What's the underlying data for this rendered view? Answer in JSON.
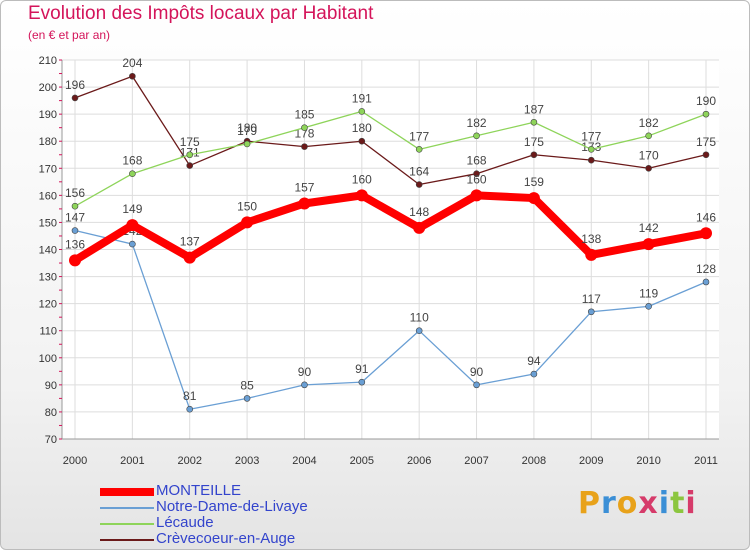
{
  "title": "Evolution des Impôts locaux par Habitant",
  "subtitle": "(en € et par an)",
  "logo": {
    "text": "Proxiti",
    "letter_colors": [
      "#e8a21a",
      "#3b8fd6",
      "#e8a21a",
      "#d63b6a",
      "#3b8fd6",
      "#8cc63f",
      "#d63b6a"
    ]
  },
  "chart_data": {
    "type": "line",
    "x": [
      "2000",
      "2001",
      "2002",
      "2003",
      "2004",
      "2005",
      "2006",
      "2007",
      "2008",
      "2009",
      "2010",
      "2011"
    ],
    "ylim": [
      70,
      210
    ],
    "yticks": [
      70,
      80,
      90,
      100,
      110,
      120,
      130,
      140,
      150,
      160,
      170,
      180,
      190,
      200,
      210
    ],
    "grid": true,
    "series": [
      {
        "name": "MONTEILLE",
        "color": "#ff0000",
        "values": [
          136,
          149,
          137,
          150,
          157,
          160,
          148,
          160,
          159,
          138,
          142,
          146
        ]
      },
      {
        "name": "Notre-Dame-de-Livaye",
        "color": "#6a9fd4",
        "values": [
          147,
          142,
          81,
          85,
          90,
          91,
          110,
          90,
          94,
          117,
          119,
          128
        ]
      },
      {
        "name": "Lécaude",
        "color": "#8ed45a",
        "values": [
          156,
          168,
          175,
          179,
          185,
          191,
          177,
          182,
          187,
          177,
          182,
          190
        ]
      },
      {
        "name": "Crèvecoeur-en-Auge",
        "color": "#6b1a1a",
        "values": [
          196,
          204,
          171,
          180,
          178,
          180,
          164,
          168,
          175,
          173,
          170,
          175
        ]
      }
    ]
  }
}
